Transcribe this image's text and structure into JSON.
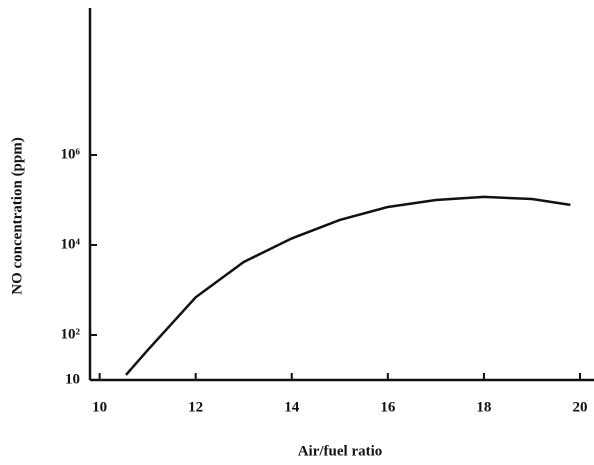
{
  "chart_data": {
    "type": "line",
    "x_label": "Air/fuel ratio",
    "y_label": "NO concentration (ppm)",
    "x": [
      10.55,
      11,
      12,
      13,
      14,
      15,
      16,
      17,
      18,
      19,
      19.8
    ],
    "values": [
      13,
      46,
      690,
      4200,
      14000,
      36000,
      70000,
      100000,
      117000,
      105000,
      78000
    ],
    "color": "#111111",
    "y_scale": "log",
    "xlim": [
      9.8,
      20
    ],
    "xticks": [
      10,
      12,
      14,
      16,
      18,
      20
    ],
    "ylim": [
      10,
      1000000000
    ],
    "yticks": [
      10,
      {
        "value": 100,
        "label": "10²"
      },
      {
        "value": 10000,
        "label": "10⁴"
      },
      {
        "value": 1000000,
        "label": "10⁶"
      }
    ],
    "grid": false
  }
}
